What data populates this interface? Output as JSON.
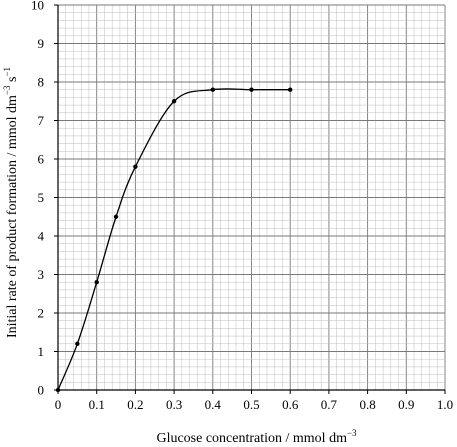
{
  "chart_data": {
    "type": "line",
    "title": "",
    "xlabel": "Glucose concentration / mmol dm",
    "xlabel_sup": "−3",
    "ylabel": "Initial rate of product formation / mmol dm",
    "ylabel_sup1": "−3",
    "ylabel_mid": " s",
    "ylabel_sup2": "−1",
    "xlim": [
      0,
      1.0
    ],
    "ylim": [
      0,
      10
    ],
    "x_ticks": [
      "0",
      "0.1",
      "0.2",
      "0.3",
      "0.4",
      "0.5",
      "0.6",
      "0.7",
      "0.8",
      "0.9",
      "1.0"
    ],
    "y_ticks": [
      "0",
      "1",
      "2",
      "3",
      "4",
      "5",
      "6",
      "7",
      "8",
      "9",
      "10"
    ],
    "grid": true,
    "minor_grid_divisions": 5,
    "series": [
      {
        "x": [
          0,
          0.05,
          0.1,
          0.15,
          0.2,
          0.3,
          0.4,
          0.5,
          0.6
        ],
        "y": [
          0,
          1.2,
          2.8,
          4.5,
          5.8,
          7.5,
          7.8,
          7.8,
          7.8
        ],
        "color": "#000000",
        "smooth": true
      }
    ],
    "colors": {
      "major_grid": "#7a7a7a",
      "minor_grid": "#bdbdbd",
      "axis": "#000000"
    }
  }
}
